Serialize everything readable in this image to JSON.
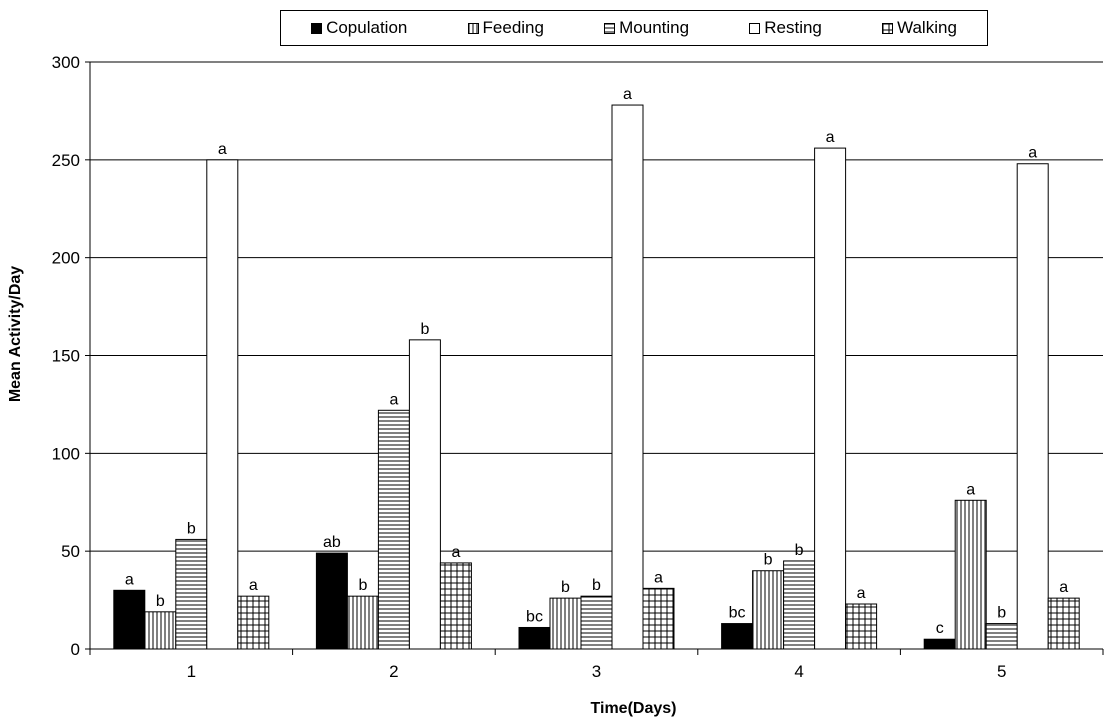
{
  "chart_data": {
    "type": "bar",
    "title": "",
    "xlabel": "Time(Days)",
    "ylabel": "Mean Activity/Day",
    "ylim": [
      0,
      300
    ],
    "yticks": [
      0,
      50,
      100,
      150,
      200,
      250,
      300
    ],
    "grid": true,
    "legend_position": "top",
    "categories": [
      "1",
      "2",
      "3",
      "4",
      "5"
    ],
    "series": [
      {
        "name": "Copulation",
        "pattern": "solid",
        "color": "#000000",
        "values": [
          30,
          49,
          11,
          13,
          5
        ],
        "labels": [
          "a",
          "ab",
          "bc",
          "bc",
          "c"
        ]
      },
      {
        "name": "Feeding",
        "pattern": "vertical-lines",
        "color": "#000000",
        "values": [
          19,
          27,
          26,
          40,
          76
        ],
        "labels": [
          "b",
          "b",
          "b",
          "b",
          "a"
        ]
      },
      {
        "name": "Mounting",
        "pattern": "horizontal-lines",
        "color": "#000000",
        "values": [
          56,
          122,
          27,
          45,
          13
        ],
        "labels": [
          "b",
          "a",
          "b",
          "b",
          "b"
        ]
      },
      {
        "name": "Resting",
        "pattern": "none",
        "color": "#000000",
        "values": [
          250,
          158,
          278,
          256,
          248
        ],
        "labels": [
          "a",
          "b",
          "a",
          "a",
          "a"
        ]
      },
      {
        "name": "Walking",
        "pattern": "grid",
        "color": "#000000",
        "values": [
          27,
          44,
          31,
          23,
          26
        ],
        "labels": [
          "a",
          "a",
          "a",
          "a",
          "a"
        ]
      }
    ]
  }
}
